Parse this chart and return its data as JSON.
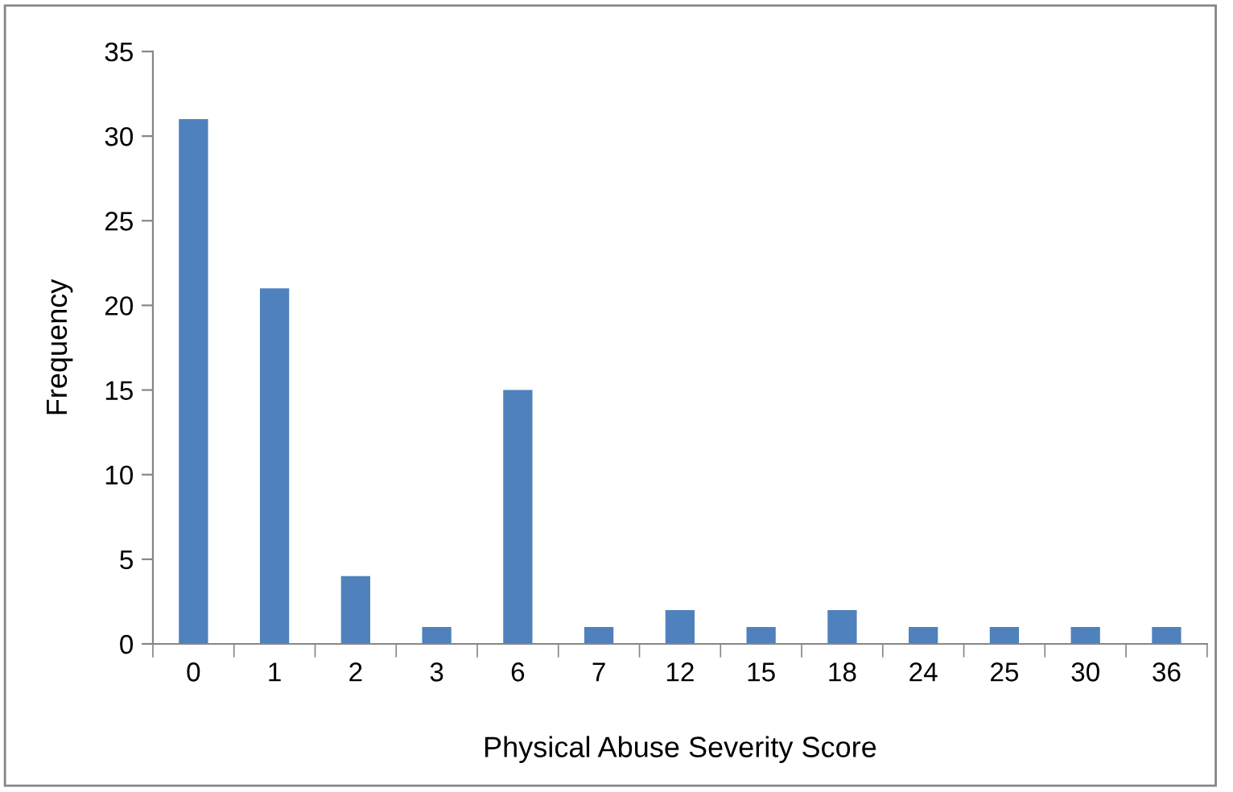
{
  "chart_data": {
    "type": "bar",
    "xlabel": "Physical Abuse Severity Score",
    "ylabel": "Frequency",
    "categories": [
      "0",
      "1",
      "2",
      "3",
      "6",
      "7",
      "12",
      "15",
      "18",
      "24",
      "25",
      "30",
      "36"
    ],
    "values": [
      31,
      21,
      4,
      1,
      15,
      1,
      2,
      1,
      2,
      1,
      1,
      1,
      1
    ],
    "color": "#4f81bd",
    "ylim": [
      0,
      35
    ],
    "yticks": [
      0,
      5,
      10,
      15,
      20,
      25,
      30,
      35
    ],
    "grid": false,
    "legend": false
  }
}
